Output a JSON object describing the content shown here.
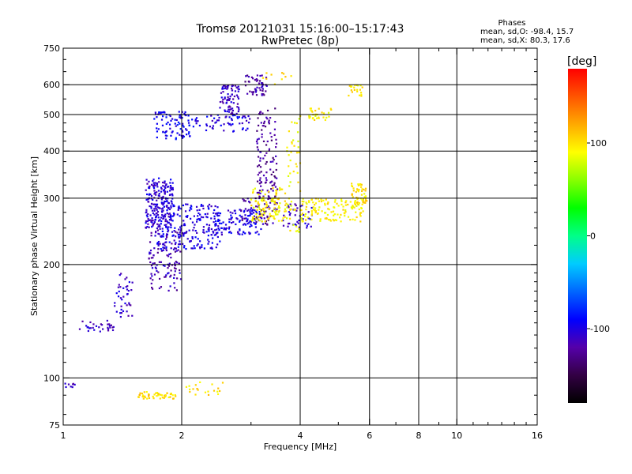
{
  "chart_data": {
    "type": "scatter",
    "title": "Tromsø 20121031 15:16:00–15:17:43",
    "subtitle": "RwPretec (8p)",
    "stats": {
      "heading": "Phases",
      "line_o": "mean, sd,O: -98.4, 15.7",
      "line_x": "mean, sd,X:  80.3, 17.6"
    },
    "xlabel": "Frequency [MHz]",
    "ylabel": "Stationary phase Virtual Height [km]",
    "xscale": "log",
    "yscale": "log",
    "xlim": [
      1,
      16
    ],
    "ylim": [
      75,
      750
    ],
    "xticks": [
      1,
      2,
      4,
      6,
      8,
      10,
      16
    ],
    "yticks": [
      75,
      100,
      200,
      300,
      400,
      500,
      600,
      750
    ],
    "xgrid": [
      2,
      4,
      6,
      8,
      10
    ],
    "ygrid": [
      100,
      200,
      300,
      400,
      500,
      600
    ],
    "colorbar": {
      "label": "[deg]",
      "range": [
        -180,
        180
      ],
      "ticks": [
        -100,
        0,
        100
      ],
      "colors": [
        "#000000",
        "#330044",
        "#5500aa",
        "#0000ff",
        "#0066ff",
        "#00ccff",
        "#00ff88",
        "#00ff00",
        "#88ff00",
        "#ffff00",
        "#ffaa00",
        "#ff5500",
        "#ff0000"
      ]
    },
    "series": [
      {
        "phase": -110,
        "x_range": [
          1.0,
          1.07
        ],
        "y_range": [
          94,
          97
        ],
        "n": 8
      },
      {
        "phase": -110,
        "x_range": [
          1.1,
          1.35
        ],
        "y_range": [
          132,
          142
        ],
        "n": 30
      },
      {
        "phase": -110,
        "x_range": [
          1.35,
          1.5
        ],
        "y_range": [
          145,
          190
        ],
        "n": 40
      },
      {
        "phase": -105,
        "x_range": [
          1.62,
          1.9
        ],
        "y_range": [
          250,
          340
        ],
        "n": 200
      },
      {
        "phase": -115,
        "x_range": [
          1.65,
          2.0
        ],
        "y_range": [
          170,
          250
        ],
        "n": 120
      },
      {
        "phase": -100,
        "x_range": [
          1.7,
          2.5
        ],
        "y_range": [
          220,
          290
        ],
        "n": 220
      },
      {
        "phase": -100,
        "x_range": [
          2.4,
          3.2
        ],
        "y_range": [
          240,
          280
        ],
        "n": 120
      },
      {
        "phase": -95,
        "x_range": [
          1.7,
          2.1
        ],
        "y_range": [
          430,
          510
        ],
        "n": 90
      },
      {
        "phase": -100,
        "x_range": [
          2.1,
          3.0
        ],
        "y_range": [
          450,
          500
        ],
        "n": 60
      },
      {
        "phase": -110,
        "x_range": [
          2.5,
          2.8
        ],
        "y_range": [
          500,
          600
        ],
        "n": 80
      },
      {
        "phase": -120,
        "x_range": [
          2.9,
          3.3
        ],
        "y_range": [
          560,
          640
        ],
        "n": 50
      },
      {
        "phase": -125,
        "x_range": [
          3.1,
          3.5
        ],
        "y_range": [
          280,
          520
        ],
        "n": 120
      },
      {
        "phase": -120,
        "x_range": [
          2.8,
          3.5
        ],
        "y_range": [
          255,
          300
        ],
        "n": 60
      },
      {
        "phase": -110,
        "x_range": [
          3.6,
          4.3
        ],
        "y_range": [
          250,
          290
        ],
        "n": 40
      },
      {
        "phase": 95,
        "x_range": [
          3.0,
          3.7
        ],
        "y_range": [
          260,
          320
        ],
        "n": 110
      },
      {
        "phase": 90,
        "x_range": [
          3.7,
          4.0
        ],
        "y_range": [
          240,
          520
        ],
        "n": 50
      },
      {
        "phase": 95,
        "x_range": [
          4.0,
          5.8
        ],
        "y_range": [
          260,
          300
        ],
        "n": 130
      },
      {
        "phase": 100,
        "x_range": [
          5.4,
          5.9
        ],
        "y_range": [
          290,
          330
        ],
        "n": 50
      },
      {
        "phase": 95,
        "x_range": [
          4.2,
          4.8
        ],
        "y_range": [
          480,
          520
        ],
        "n": 30
      },
      {
        "phase": 95,
        "x_range": [
          5.3,
          5.8
        ],
        "y_range": [
          560,
          600
        ],
        "n": 20
      },
      {
        "phase": 100,
        "x_range": [
          1.55,
          1.95
        ],
        "y_range": [
          88,
          92
        ],
        "n": 50
      },
      {
        "phase": 100,
        "x_range": [
          2.05,
          2.55
        ],
        "y_range": [
          90,
          98
        ],
        "n": 20
      },
      {
        "phase": 105,
        "x_range": [
          3.2,
          3.8
        ],
        "y_range": [
          600,
          650
        ],
        "n": 10
      }
    ]
  }
}
